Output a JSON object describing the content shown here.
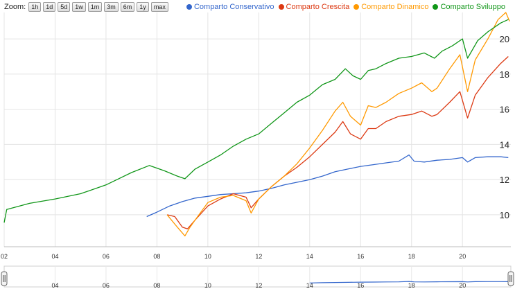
{
  "zoom": {
    "label": "Zoom:",
    "buttons": [
      "1h",
      "1d",
      "5d",
      "1w",
      "1m",
      "3m",
      "6m",
      "1y",
      "max"
    ]
  },
  "chart_data": {
    "type": "line",
    "x_ticks": [
      "02",
      "04",
      "06",
      "08",
      "10",
      "12",
      "14",
      "16",
      "18",
      "20"
    ],
    "y_ticks": [
      "10",
      "12",
      "14",
      "16",
      "18",
      "20"
    ],
    "ylim": [
      8.5,
      21.5
    ],
    "xlim": [
      2002.0,
      2021.9
    ],
    "grid": true,
    "legend_position": "top-right",
    "series": [
      {
        "name": "Comparto Conservativo",
        "color": "#3366cc",
        "points": [
          [
            2007.6,
            9.9
          ],
          [
            2008.0,
            10.15
          ],
          [
            2008.5,
            10.5
          ],
          [
            2009.0,
            10.75
          ],
          [
            2009.5,
            10.95
          ],
          [
            2010.0,
            11.05
          ],
          [
            2010.5,
            11.15
          ],
          [
            2011.0,
            11.2
          ],
          [
            2011.5,
            11.25
          ],
          [
            2012.0,
            11.35
          ],
          [
            2012.5,
            11.5
          ],
          [
            2013.0,
            11.7
          ],
          [
            2013.5,
            11.85
          ],
          [
            2014.0,
            12.0
          ],
          [
            2014.5,
            12.2
          ],
          [
            2015.0,
            12.45
          ],
          [
            2015.5,
            12.6
          ],
          [
            2016.0,
            12.75
          ],
          [
            2016.5,
            12.85
          ],
          [
            2017.0,
            12.95
          ],
          [
            2017.5,
            13.05
          ],
          [
            2017.9,
            13.4
          ],
          [
            2018.1,
            13.05
          ],
          [
            2018.5,
            13.0
          ],
          [
            2019.0,
            13.1
          ],
          [
            2019.5,
            13.15
          ],
          [
            2020.0,
            13.25
          ],
          [
            2020.2,
            13.0
          ],
          [
            2020.5,
            13.25
          ],
          [
            2021.0,
            13.3
          ],
          [
            2021.5,
            13.3
          ],
          [
            2021.8,
            13.25
          ]
        ]
      },
      {
        "name": "Comparto Crescita",
        "color": "#dc3912",
        "points": [
          [
            2008.4,
            10.0
          ],
          [
            2008.7,
            9.9
          ],
          [
            2009.0,
            9.3
          ],
          [
            2009.2,
            9.2
          ],
          [
            2009.5,
            9.7
          ],
          [
            2010.0,
            10.5
          ],
          [
            2010.5,
            10.9
          ],
          [
            2011.0,
            11.2
          ],
          [
            2011.5,
            11.0
          ],
          [
            2011.7,
            10.4
          ],
          [
            2012.0,
            10.9
          ],
          [
            2012.5,
            11.6
          ],
          [
            2013.0,
            12.2
          ],
          [
            2013.5,
            12.7
          ],
          [
            2014.0,
            13.3
          ],
          [
            2014.5,
            14.0
          ],
          [
            2015.0,
            14.7
          ],
          [
            2015.3,
            15.3
          ],
          [
            2015.6,
            14.6
          ],
          [
            2016.0,
            14.3
          ],
          [
            2016.3,
            14.9
          ],
          [
            2016.6,
            14.9
          ],
          [
            2017.0,
            15.3
          ],
          [
            2017.5,
            15.6
          ],
          [
            2018.0,
            15.7
          ],
          [
            2018.4,
            15.9
          ],
          [
            2018.8,
            15.6
          ],
          [
            2019.0,
            15.7
          ],
          [
            2019.5,
            16.4
          ],
          [
            2019.9,
            17.0
          ],
          [
            2020.2,
            15.5
          ],
          [
            2020.5,
            16.8
          ],
          [
            2021.0,
            17.8
          ],
          [
            2021.5,
            18.6
          ],
          [
            2021.8,
            19.0
          ]
        ]
      },
      {
        "name": "Comparto Dinamico",
        "color": "#ff9900",
        "points": [
          [
            2008.4,
            10.0
          ],
          [
            2008.8,
            9.3
          ],
          [
            2009.1,
            8.8
          ],
          [
            2009.3,
            9.3
          ],
          [
            2009.5,
            9.7
          ],
          [
            2010.0,
            10.7
          ],
          [
            2010.5,
            11.0
          ],
          [
            2011.0,
            11.1
          ],
          [
            2011.5,
            10.8
          ],
          [
            2011.7,
            10.1
          ],
          [
            2012.0,
            10.9
          ],
          [
            2012.5,
            11.6
          ],
          [
            2013.0,
            12.2
          ],
          [
            2013.5,
            12.9
          ],
          [
            2014.0,
            13.8
          ],
          [
            2014.5,
            14.8
          ],
          [
            2015.0,
            15.9
          ],
          [
            2015.3,
            16.4
          ],
          [
            2015.6,
            15.6
          ],
          [
            2016.0,
            15.1
          ],
          [
            2016.3,
            16.2
          ],
          [
            2016.6,
            16.1
          ],
          [
            2017.0,
            16.4
          ],
          [
            2017.5,
            16.9
          ],
          [
            2018.0,
            17.2
          ],
          [
            2018.4,
            17.5
          ],
          [
            2018.8,
            17.0
          ],
          [
            2019.0,
            17.2
          ],
          [
            2019.5,
            18.3
          ],
          [
            2019.9,
            19.1
          ],
          [
            2020.2,
            17.0
          ],
          [
            2020.5,
            18.8
          ],
          [
            2021.0,
            20.0
          ],
          [
            2021.4,
            21.1
          ],
          [
            2021.7,
            21.5
          ],
          [
            2021.85,
            21.0
          ]
        ]
      },
      {
        "name": "Comparto Sviluppo",
        "color": "#109618",
        "points": [
          [
            2002.0,
            9.55
          ],
          [
            2002.1,
            10.3
          ],
          [
            2003.0,
            10.65
          ],
          [
            2004.0,
            10.9
          ],
          [
            2005.0,
            11.2
          ],
          [
            2006.0,
            11.7
          ],
          [
            2007.0,
            12.4
          ],
          [
            2007.7,
            12.8
          ],
          [
            2008.3,
            12.5
          ],
          [
            2008.8,
            12.2
          ],
          [
            2009.1,
            12.05
          ],
          [
            2009.5,
            12.6
          ],
          [
            2010.0,
            13.0
          ],
          [
            2010.5,
            13.4
          ],
          [
            2011.0,
            13.9
          ],
          [
            2011.5,
            14.3
          ],
          [
            2012.0,
            14.6
          ],
          [
            2012.5,
            15.2
          ],
          [
            2013.0,
            15.8
          ],
          [
            2013.5,
            16.4
          ],
          [
            2014.0,
            16.8
          ],
          [
            2014.5,
            17.4
          ],
          [
            2015.0,
            17.7
          ],
          [
            2015.4,
            18.3
          ],
          [
            2015.7,
            17.9
          ],
          [
            2016.0,
            17.7
          ],
          [
            2016.3,
            18.2
          ],
          [
            2016.6,
            18.3
          ],
          [
            2017.0,
            18.6
          ],
          [
            2017.5,
            18.9
          ],
          [
            2018.0,
            19.0
          ],
          [
            2018.5,
            19.2
          ],
          [
            2018.9,
            18.9
          ],
          [
            2019.2,
            19.3
          ],
          [
            2019.6,
            19.6
          ],
          [
            2020.0,
            20.0
          ],
          [
            2020.2,
            18.9
          ],
          [
            2020.6,
            19.9
          ],
          [
            2021.0,
            20.4
          ],
          [
            2021.5,
            20.9
          ],
          [
            2021.8,
            21.1
          ]
        ]
      }
    ]
  },
  "navigator": {
    "x_ticks": [
      "04",
      "06",
      "08",
      "10",
      "12",
      "14",
      "16",
      "18",
      "20"
    ]
  },
  "colors": {
    "grid": "#e4e4e4",
    "axis": "#bdbdbd"
  }
}
